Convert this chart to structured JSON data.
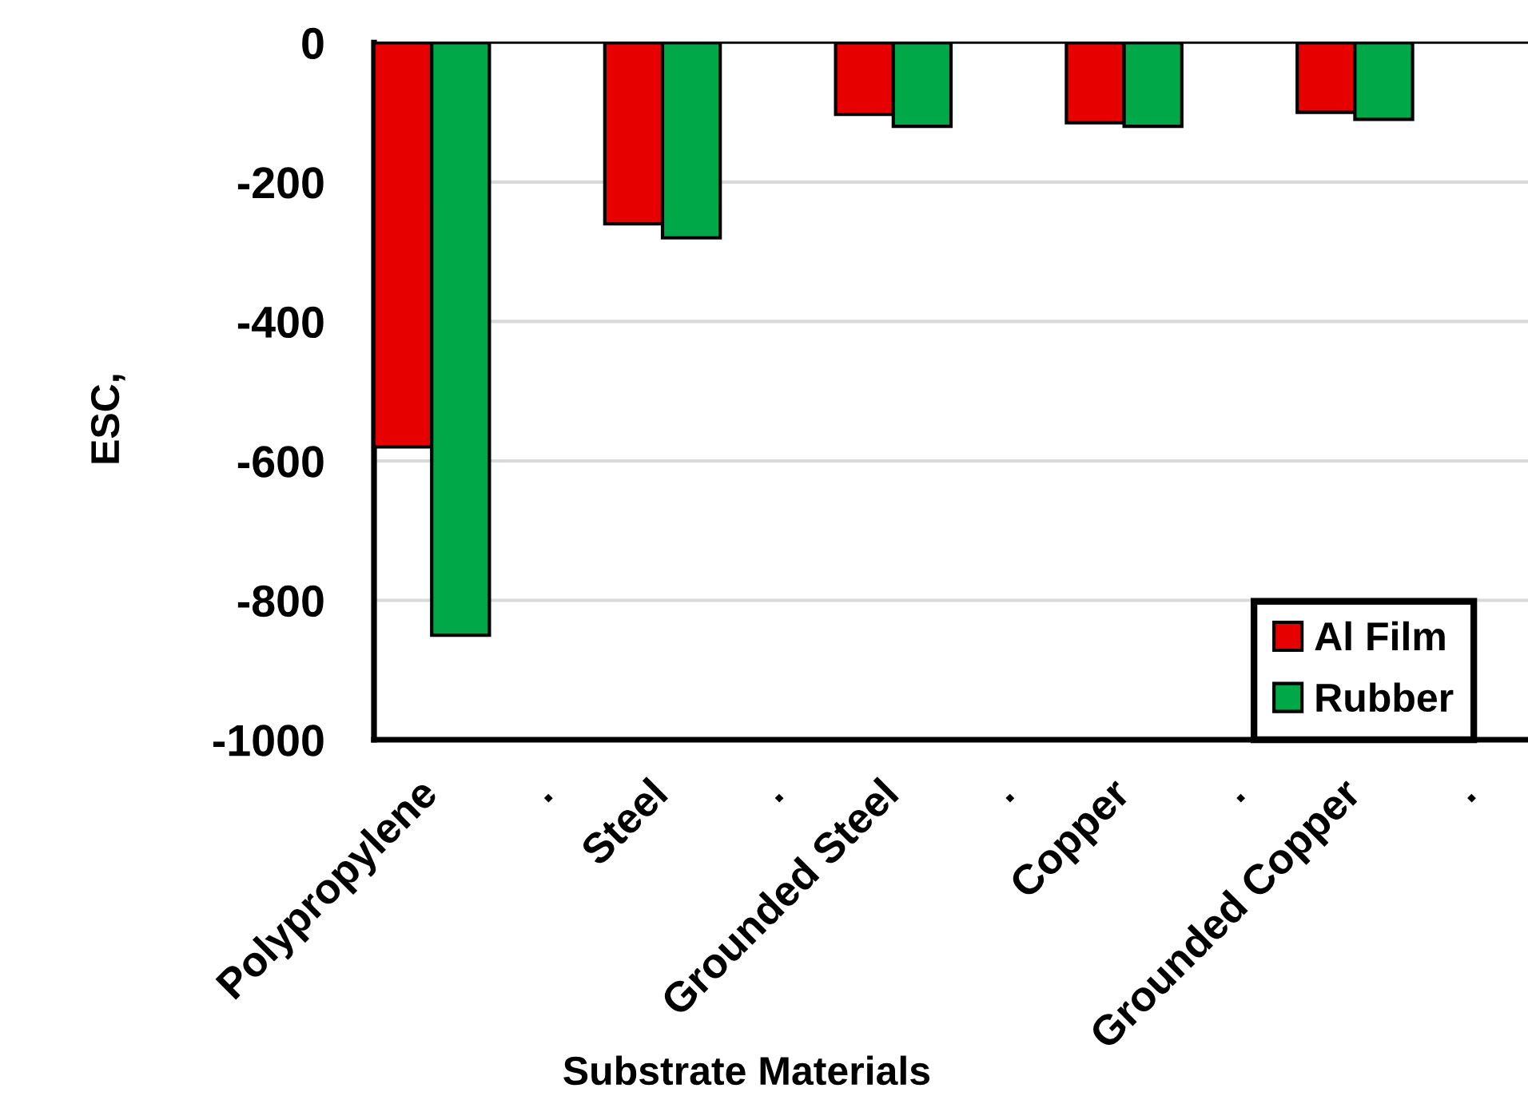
{
  "chart_data": {
    "type": "bar",
    "xlabel": "Substrate Materials",
    "ylabel": "ESC,",
    "categories": [
      "Polypropylene",
      ".",
      "Steel",
      ".",
      "Grounded Steel",
      ".",
      "Copper",
      ".",
      "Grounded Copper",
      "."
    ],
    "series": [
      {
        "name": "Al Film",
        "color": "#e60000",
        "values": [
          -580,
          null,
          -260,
          null,
          -103,
          null,
          -115,
          null,
          -100,
          null
        ]
      },
      {
        "name": "Rubber",
        "color": "#00a848",
        "values": [
          -850,
          null,
          -280,
          null,
          -120,
          null,
          -120,
          null,
          -110,
          null
        ]
      }
    ],
    "ylim": [
      -1000,
      0
    ],
    "yticks": [
      -1000,
      -800,
      -600,
      -400,
      -200,
      0
    ],
    "grid": "y",
    "legend": "bottom right"
  }
}
